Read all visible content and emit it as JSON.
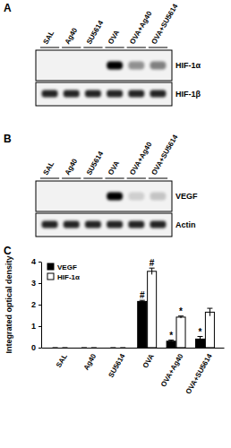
{
  "blots": [
    {
      "panel": "A",
      "lanes": [
        "SAL",
        "Ag40",
        "SU5614",
        "OVA",
        "OVA+Ag40",
        "OVA+SU5614"
      ],
      "rows": [
        "HIF-1α",
        "HIF-1β"
      ]
    },
    {
      "panel": "B",
      "lanes": [
        "SAL",
        "Ag40",
        "SU5614",
        "OVA",
        "OVA+Ag40",
        "OVA+SU5614"
      ],
      "rows": [
        "VEGF",
        "Actin"
      ]
    }
  ],
  "chart_panel": "C",
  "chart_data": {
    "type": "bar",
    "y_label": "Integrated optical density",
    "categories": [
      "SAL",
      "Ag40",
      "SU5614",
      "OVA",
      "OVA+Ag40",
      "OVA+SU5614"
    ],
    "series": [
      {
        "name": "VEGF",
        "color": "#000000",
        "values": [
          0,
          0,
          0,
          2.15,
          0.3,
          0.4
        ],
        "errors": [
          0,
          0,
          0,
          0.05,
          0.05,
          0.12
        ],
        "significance": [
          null,
          null,
          null,
          "#",
          "*",
          "*"
        ]
      },
      {
        "name": "HIF-1α",
        "color": "#ffffff",
        "values": [
          0,
          0,
          0,
          3.55,
          1.42,
          1.65
        ],
        "errors": [
          0,
          0,
          0,
          0.15,
          0.05,
          0.18
        ],
        "significance": [
          null,
          null,
          null,
          "#",
          "*",
          null
        ]
      }
    ],
    "ylim": [
      0,
      4
    ],
    "yticks": [
      0,
      1,
      2,
      3,
      4
    ],
    "legend": "top-left",
    "grid": false
  }
}
